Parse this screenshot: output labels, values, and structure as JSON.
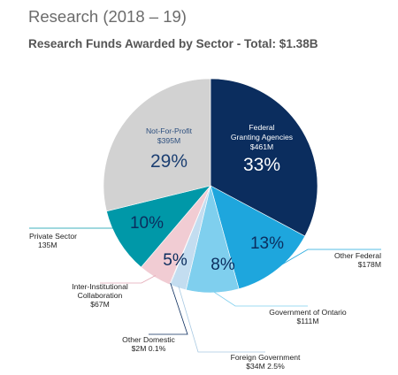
{
  "header": {
    "title": "Research (2018 – 19)",
    "subtitle": "Research Funds Awarded by Sector - Total: $1.38B"
  },
  "chart_data": {
    "type": "pie",
    "title": "Research Funds Awarded by Sector - Total: $1.38B",
    "total": "$1.38B",
    "slices": [
      {
        "name": "Federal Granting Agencies",
        "amount": "$461M",
        "percent": 33,
        "percent_label": "33%",
        "color": "#0b2d5e"
      },
      {
        "name": "Other Federal",
        "amount": "$178M",
        "percent": 13,
        "percent_label": "13%",
        "color": "#1ea6dd"
      },
      {
        "name": "Government of Ontario",
        "amount": "$111M",
        "percent": 8,
        "percent_label": "8%",
        "color": "#7fcfee"
      },
      {
        "name": "Foreign Government",
        "amount": "$34M 2.5%",
        "percent": 2.5,
        "percent_label": "",
        "color": "#c3ddf0"
      },
      {
        "name": "Other Domestic",
        "amount": "$2M 0.1%",
        "percent": 0.1,
        "percent_label": "",
        "color": "#0b2d5e"
      },
      {
        "name": "Inter-Institutional Collaboration",
        "amount": "$67M",
        "percent": 5,
        "percent_label": "5%",
        "color": "#f1ccd3"
      },
      {
        "name": "Private Sector",
        "amount": "135M",
        "percent": 10,
        "percent_label": "10%",
        "color": "#0098a8"
      },
      {
        "name": "Not-For-Profit",
        "amount": "$395M",
        "percent": 29,
        "percent_label": "29%",
        "color": "#d2d2d2"
      }
    ]
  },
  "labels": {
    "federal_line1": "Federal",
    "federal_line2": "Granting Agencies",
    "notforprofit": "Not-For-Profit",
    "private_sector": "Private Sector",
    "inter_line1": "Inter-Institutional",
    "inter_line2": "Collaboration",
    "other_domestic": "Other Domestic",
    "other_federal": "Other Federal",
    "gov_ontario": "Government of Ontario",
    "foreign_gov": "Foreign Government"
  }
}
